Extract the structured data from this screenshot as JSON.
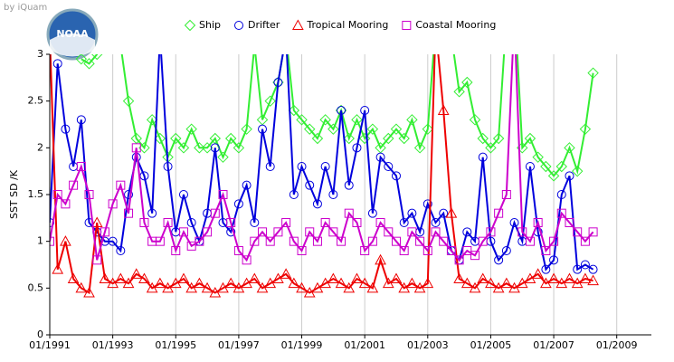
{
  "credit": "by iQuam",
  "logo_text": "NOAA",
  "chart_data": {
    "type": "line",
    "y_label": "SST SD /K",
    "x": [
      1991,
      1991.25,
      1991.5,
      1991.75,
      1992,
      1992.25,
      1992.5,
      1992.75,
      1993,
      1993.25,
      1993.5,
      1993.75,
      1994,
      1994.25,
      1994.5,
      1994.75,
      1995,
      1995.25,
      1995.5,
      1995.75,
      1996,
      1996.25,
      1996.5,
      1996.75,
      1997,
      1997.25,
      1997.5,
      1997.75,
      1998,
      1998.25,
      1998.5,
      1998.75,
      1999,
      1999.25,
      1999.5,
      1999.75,
      2000,
      2000.25,
      2000.5,
      2000.75,
      2001,
      2001.25,
      2001.5,
      2001.75,
      2002,
      2002.25,
      2002.5,
      2002.75,
      2003,
      2003.25,
      2003.5,
      2003.75,
      2004,
      2004.25,
      2004.5,
      2004.75,
      2005,
      2005.25,
      2005.5,
      2005.75,
      2006,
      2006.25,
      2006.5,
      2006.75,
      2007,
      2007.25,
      2007.5,
      2007.75,
      2008,
      2008.25
    ],
    "series": [
      {
        "name": "Ship",
        "color": "#33ee33",
        "marker": "diamond",
        "values": [
          null,
          null,
          null,
          null,
          2.95,
          2.9,
          3.0,
          3.3,
          3.4,
          3.1,
          2.5,
          2.1,
          2.0,
          2.3,
          2.1,
          1.9,
          2.1,
          2.0,
          2.2,
          2.0,
          2.0,
          2.1,
          1.9,
          2.1,
          2.0,
          2.2,
          3.1,
          2.3,
          2.5,
          2.7,
          3.2,
          2.4,
          2.3,
          2.2,
          2.1,
          2.3,
          2.2,
          2.4,
          2.1,
          2.3,
          2.1,
          2.2,
          2.0,
          2.1,
          2.2,
          2.1,
          2.3,
          2.0,
          2.2,
          3.3,
          3.5,
          3.2,
          2.6,
          2.7,
          2.3,
          2.1,
          2.0,
          2.1,
          3.4,
          3.6,
          2.0,
          2.1,
          1.9,
          1.8,
          1.7,
          1.8,
          2.0,
          1.75,
          2.2,
          2.8
        ]
      },
      {
        "name": "Drifter",
        "color": "#0000dd",
        "marker": "circle",
        "values": [
          1.2,
          2.9,
          2.2,
          1.8,
          2.3,
          1.2,
          1.1,
          1.0,
          1.0,
          0.9,
          1.5,
          1.9,
          1.7,
          1.3,
          3.2,
          1.8,
          1.1,
          1.5,
          1.2,
          1.0,
          1.3,
          2.0,
          1.2,
          1.1,
          1.4,
          1.6,
          1.2,
          2.2,
          1.8,
          2.7,
          3.2,
          1.5,
          1.8,
          1.6,
          1.4,
          1.8,
          1.5,
          2.4,
          1.6,
          2.0,
          2.4,
          1.3,
          1.9,
          1.8,
          1.7,
          1.2,
          1.3,
          1.1,
          1.4,
          1.2,
          1.3,
          0.9,
          0.8,
          1.1,
          1.0,
          1.9,
          1.0,
          0.8,
          0.9,
          1.2,
          1.0,
          1.8,
          1.1,
          0.7,
          0.8,
          1.5,
          1.7,
          0.7,
          0.75,
          0.7
        ]
      },
      {
        "name": "Tropical Mooring",
        "color": "#ee0000",
        "marker": "triangle",
        "values": [
          3.2,
          0.7,
          1.0,
          0.6,
          0.5,
          0.45,
          1.2,
          0.6,
          0.55,
          0.6,
          0.55,
          0.65,
          0.6,
          0.5,
          0.55,
          0.5,
          0.55,
          0.6,
          0.5,
          0.55,
          0.5,
          0.45,
          0.5,
          0.55,
          0.5,
          0.55,
          0.6,
          0.5,
          0.55,
          0.6,
          0.65,
          0.55,
          0.5,
          0.45,
          0.5,
          0.55,
          0.6,
          0.55,
          0.5,
          0.6,
          0.55,
          0.5,
          0.8,
          0.55,
          0.6,
          0.5,
          0.55,
          0.5,
          0.55,
          3.3,
          2.4,
          1.3,
          0.6,
          0.55,
          0.5,
          0.6,
          0.55,
          0.5,
          0.55,
          0.5,
          0.55,
          0.6,
          0.65,
          0.55,
          0.6,
          0.55,
          0.6,
          0.55,
          0.6,
          0.58
        ]
      },
      {
        "name": "Coastal Mooring",
        "color": "#cc00cc",
        "marker": "square",
        "values": [
          1.0,
          1.5,
          1.4,
          1.6,
          1.8,
          1.5,
          0.8,
          1.1,
          1.4,
          1.6,
          1.3,
          2.0,
          1.2,
          1.0,
          1.0,
          1.2,
          0.9,
          1.1,
          0.95,
          1.0,
          1.1,
          1.3,
          1.5,
          1.2,
          0.9,
          0.8,
          1.0,
          1.1,
          1.0,
          1.1,
          1.2,
          1.0,
          0.9,
          1.1,
          1.0,
          1.2,
          1.1,
          1.0,
          1.3,
          1.2,
          0.9,
          1.0,
          1.2,
          1.1,
          1.0,
          0.9,
          1.1,
          1.0,
          0.9,
          1.1,
          1.0,
          0.9,
          0.8,
          0.9,
          0.85,
          1.0,
          1.1,
          1.3,
          1.5,
          3.4,
          1.1,
          1.0,
          1.2,
          0.9,
          1.0,
          1.3,
          1.2,
          1.1,
          1.0,
          1.1
        ]
      }
    ],
    "xlim": [
      1991,
      2010.1
    ],
    "xticks": [
      {
        "value": 1991,
        "label": "01/1991"
      },
      {
        "value": 1993,
        "label": "01/1993"
      },
      {
        "value": 1995,
        "label": "01/1995"
      },
      {
        "value": 1997,
        "label": "01/1997"
      },
      {
        "value": 1999,
        "label": "01/1999"
      },
      {
        "value": 2001,
        "label": "01/2001"
      },
      {
        "value": 2003,
        "label": "01/2003"
      },
      {
        "value": 2005,
        "label": "01/2005"
      },
      {
        "value": 2007,
        "label": "01/2007"
      },
      {
        "value": 2009,
        "label": "01/2009"
      }
    ],
    "ylim": [
      0,
      3
    ],
    "yticks": [
      0,
      0.5,
      1,
      1.5,
      2,
      2.5,
      3
    ],
    "grid": "x",
    "legend": "top"
  }
}
